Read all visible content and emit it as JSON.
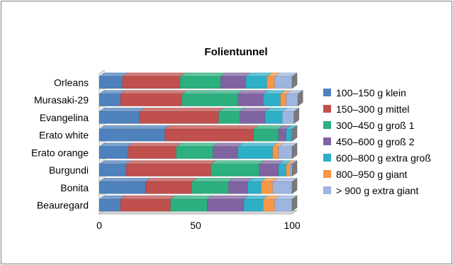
{
  "chart_data": {
    "type": "bar",
    "orientation": "horizontal",
    "stacked": true,
    "three_d": true,
    "title": "Folientunnel",
    "xlabel": "",
    "ylabel": "",
    "xlim": [
      0,
      100
    ],
    "x_ticks": [
      "0",
      "50",
      "100"
    ],
    "grid": false,
    "legend_position": "right",
    "categories": [
      "Orleans",
      "Murasaki-29",
      "Evangelina",
      "Erato white",
      "Erato orange",
      "Burgundi",
      "Bonita",
      "Beauregard"
    ],
    "series": [
      {
        "name": "100–150 g klein",
        "color": "#4F81BD",
        "values": [
          12,
          11,
          21,
          34,
          15,
          14,
          24,
          11
        ]
      },
      {
        "name": "150–300 g mittel",
        "color": "#C0504D",
        "values": [
          30,
          32,
          41,
          46,
          25,
          44,
          24,
          26
        ]
      },
      {
        "name": "300–450 g groß 1",
        "color": "#2CB07F",
        "values": [
          21,
          29,
          11,
          13,
          19,
          25,
          19,
          19
        ]
      },
      {
        "name": "450–600 g groß 2",
        "color": "#8064A2",
        "values": [
          13,
          13,
          13,
          4,
          13,
          10,
          10,
          19
        ]
      },
      {
        "name": "600–800 g extra groß",
        "color": "#2EAFC8",
        "values": [
          11,
          9,
          9,
          3,
          18,
          4,
          7,
          10
        ]
      },
      {
        "name": "800–950 g giant",
        "color": "#F79646",
        "values": [
          4,
          3,
          0,
          0,
          3,
          2,
          6,
          6
        ]
      },
      {
        "name": "> 900 g extra giant",
        "color": "#9DB5E0",
        "values": [
          9,
          6,
          6,
          0,
          7,
          1,
          10,
          9
        ]
      }
    ]
  }
}
